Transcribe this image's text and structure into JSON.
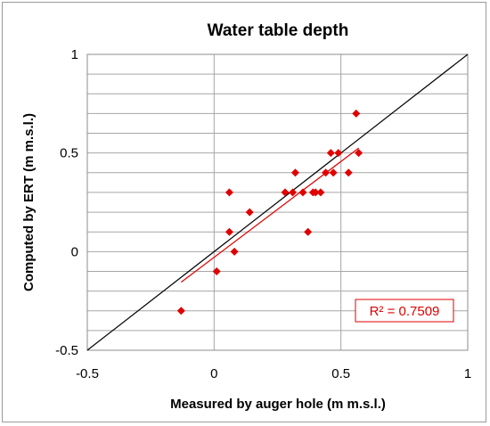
{
  "chart_data": {
    "type": "scatter",
    "title": "Water table depth",
    "xlabel": "Measured by auger hole (m m.s.l.)",
    "ylabel": "Computed by  ERT (m m.s.l.)",
    "xlim": [
      -0.5,
      1
    ],
    "ylim": [
      -0.5,
      1
    ],
    "x_major_ticks": [
      "-0.5",
      "0",
      "0.5",
      "1"
    ],
    "y_major_ticks": [
      "-0.5",
      "0",
      "0.5",
      "1"
    ],
    "x_gridlines": [
      -0.5,
      0,
      0.5,
      1
    ],
    "y_gridlines": [
      -0.4,
      -0.3,
      -0.2,
      -0.1,
      0,
      0.1,
      0.2,
      0.3,
      0.4,
      0.5,
      0.6,
      0.7,
      0.8,
      0.9,
      1
    ],
    "grid": true,
    "legend": "none",
    "series": [
      {
        "marker": "diamond",
        "color": "#e00000",
        "points": [
          {
            "x": -0.13,
            "y": -0.3
          },
          {
            "x": 0.01,
            "y": -0.1
          },
          {
            "x": 0.06,
            "y": 0.3
          },
          {
            "x": 0.06,
            "y": 0.1
          },
          {
            "x": 0.08,
            "y": 0.0
          },
          {
            "x": 0.14,
            "y": 0.2
          },
          {
            "x": 0.28,
            "y": 0.3
          },
          {
            "x": 0.31,
            "y": 0.3
          },
          {
            "x": 0.32,
            "y": 0.4
          },
          {
            "x": 0.35,
            "y": 0.3
          },
          {
            "x": 0.37,
            "y": 0.1
          },
          {
            "x": 0.39,
            "y": 0.3
          },
          {
            "x": 0.4,
            "y": 0.3
          },
          {
            "x": 0.42,
            "y": 0.3
          },
          {
            "x": 0.44,
            "y": 0.4
          },
          {
            "x": 0.46,
            "y": 0.5
          },
          {
            "x": 0.47,
            "y": 0.4
          },
          {
            "x": 0.49,
            "y": 0.5
          },
          {
            "x": 0.53,
            "y": 0.4
          },
          {
            "x": 0.56,
            "y": 0.7
          },
          {
            "x": 0.57,
            "y": 0.5
          }
        ]
      }
    ],
    "reference_line": {
      "x": [
        -0.5,
        1
      ],
      "y": [
        -0.5,
        1
      ],
      "color": "#000000"
    },
    "trendline": {
      "x": [
        -0.13,
        0.57
      ],
      "y": [
        -0.155,
        0.525
      ],
      "color": "#e00000"
    },
    "annotation": {
      "text": "R² = 0.7509",
      "color": "#e00000"
    }
  }
}
